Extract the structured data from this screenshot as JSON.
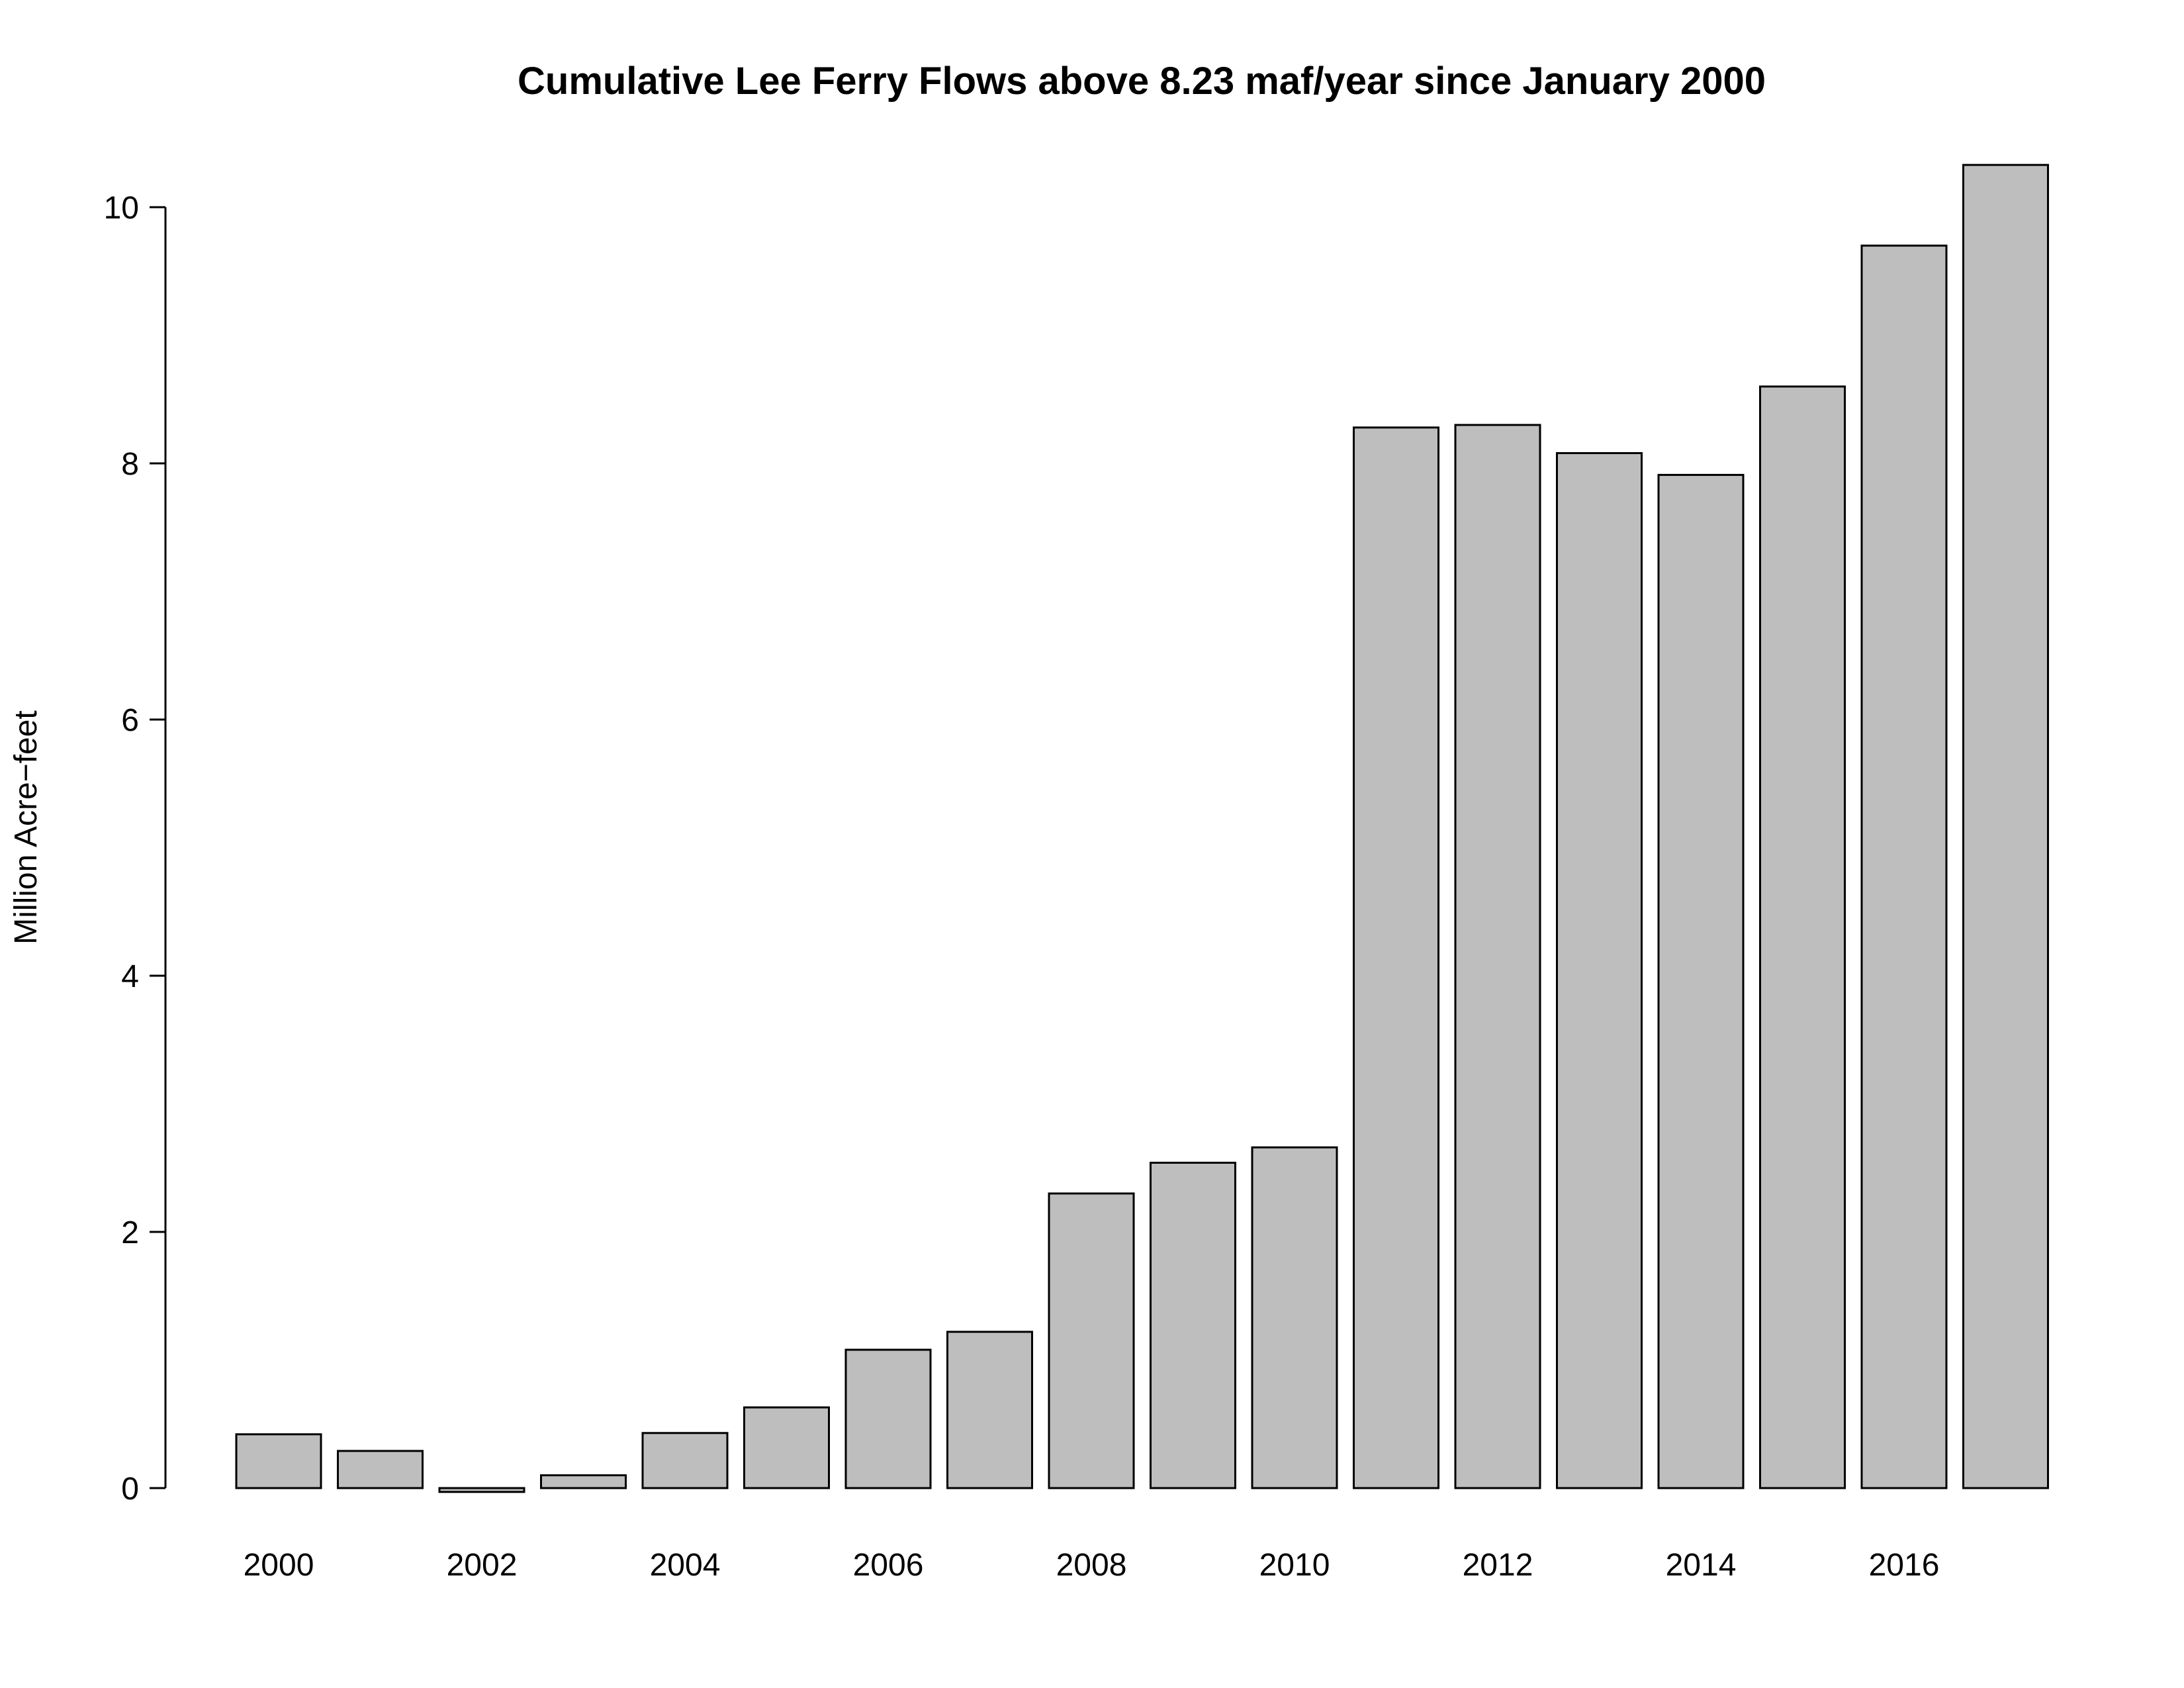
{
  "chart_data": {
    "type": "bar",
    "title": "Cumulative Lee Ferry Flows above 8.23 maf/year since January 2000",
    "xlabel": "",
    "ylabel": "Million Acre−feet",
    "categories": [
      "2000",
      "2001",
      "2002",
      "2003",
      "2004",
      "2005",
      "2006",
      "2007",
      "2008",
      "2009",
      "2010",
      "2011",
      "2012",
      "2013",
      "2014",
      "2015",
      "2016",
      "2017"
    ],
    "x_tick_labels": [
      "2000",
      "2002",
      "2004",
      "2006",
      "2008",
      "2010",
      "2012",
      "2014",
      "2016"
    ],
    "values": [
      0.42,
      0.29,
      -0.03,
      0.1,
      0.43,
      0.63,
      1.08,
      1.22,
      2.3,
      2.54,
      2.66,
      8.28,
      8.3,
      8.08,
      7.91,
      8.6,
      9.7,
      10.33
    ],
    "y_ticks": [
      0,
      2,
      4,
      6,
      8,
      10
    ],
    "ylim": [
      -0.2,
      10.4
    ],
    "bar_color": "#bebebe",
    "bar_border_color": "#000000",
    "grid": false,
    "legend": "none"
  }
}
